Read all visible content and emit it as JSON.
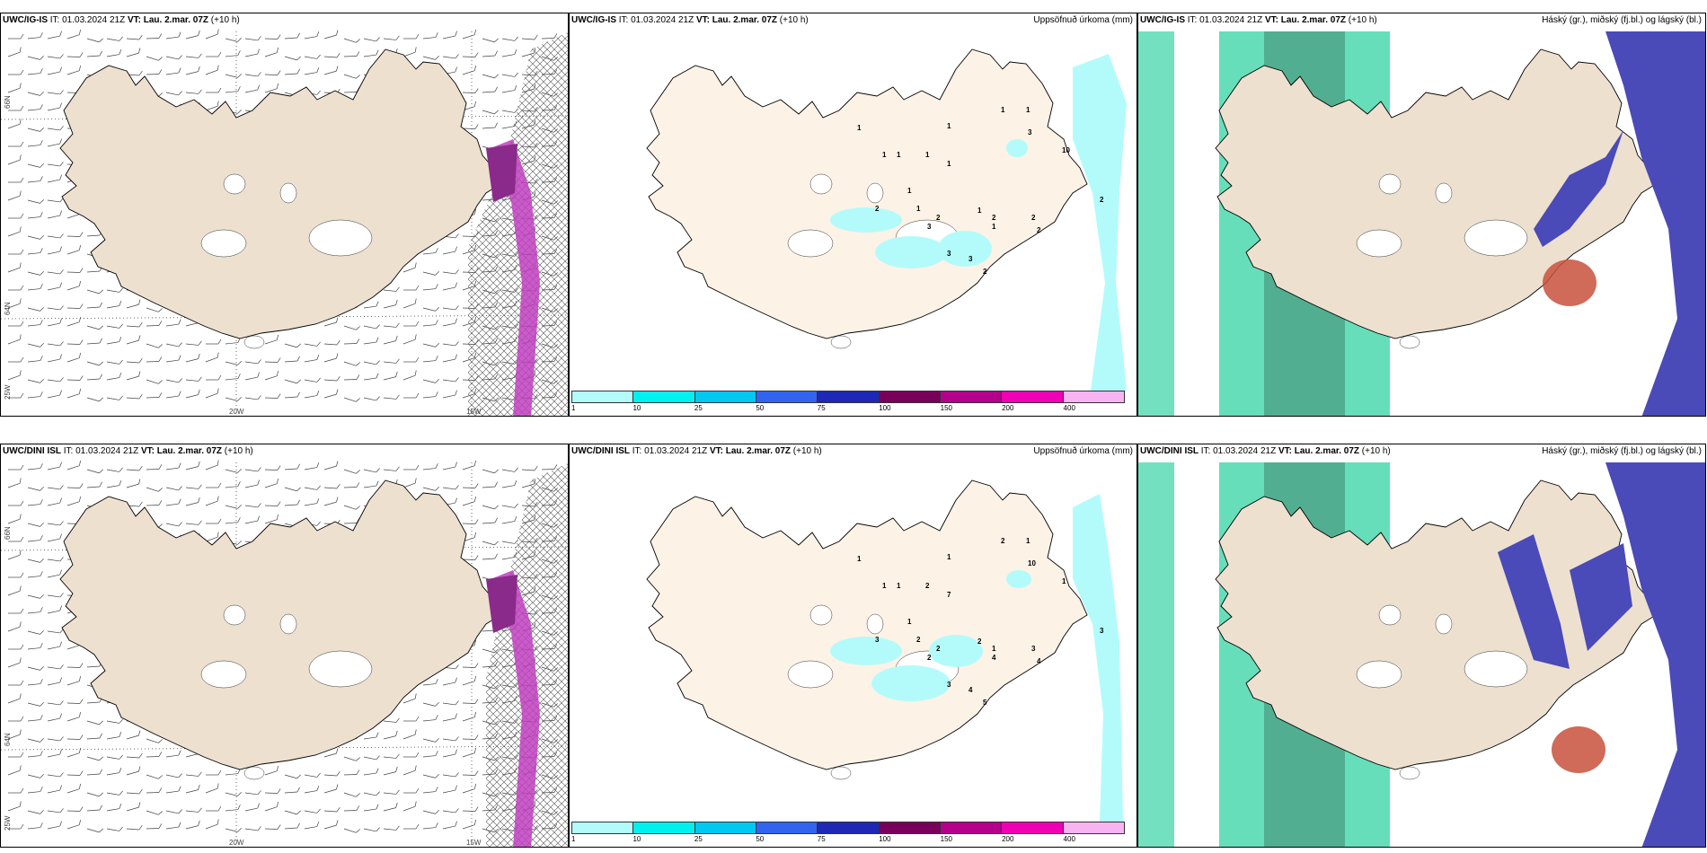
{
  "panels": [
    {
      "model": "UWC/IG-IS",
      "it": "IT: 01.03.2024 21Z",
      "vt_label": "VT:",
      "vt": "Lau. 2.mar. 07Z",
      "lead": "(+10 h)",
      "right": ""
    },
    {
      "model": "UWC/IG-IS",
      "it": "IT: 01.03.2024 21Z",
      "vt_label": "VT:",
      "vt": "Lau. 2.mar. 07Z",
      "lead": "(+10 h)",
      "right": "Uppsöfnuð úrkoma (mm)"
    },
    {
      "model": "UWC/IG-IS",
      "it": "IT: 01.03.2024 21Z",
      "vt_label": "VT:",
      "vt": "Lau. 2.mar. 07Z",
      "lead": "(+10 h)",
      "right": "Háský (gr.), miðský (fj.bl.) og lágský (bl.)"
    },
    {
      "model": "UWC/DINI ISL",
      "it": "IT: 01.03.2024 21Z",
      "vt_label": "VT:",
      "vt": "Lau. 2.mar. 07Z",
      "lead": "(+10 h)",
      "right": ""
    },
    {
      "model": "UWC/DINI ISL",
      "it": "IT: 01.03.2024 21Z",
      "vt_label": "VT:",
      "vt": "Lau. 2.mar. 07Z",
      "lead": "(+10 h)",
      "right": "Uppsöfnuð úrkoma (mm)"
    },
    {
      "model": "UWC/DINI ISL",
      "it": "IT: 01.03.2024 21Z",
      "vt_label": "VT:",
      "vt": "Lau. 2.mar. 07Z",
      "lead": "(+10 h)",
      "right": "Háský (gr.), miðský (fj.bl.) og lágský (bl.)"
    }
  ],
  "grid_labels": {
    "lat": [
      "66N",
      "64N"
    ],
    "lon": [
      "25W",
      "20W",
      "15W"
    ]
  },
  "precip_legend": {
    "ticks": [
      "1",
      "10",
      "25",
      "50",
      "75",
      "100",
      "150",
      "200",
      "400"
    ],
    "colors": [
      "#b3fbfb",
      "#00f0f0",
      "#00c8f0",
      "#3264f0",
      "#1e28b4",
      "#78005a",
      "#b4008c",
      "#f000b4",
      "#f8b4f0"
    ]
  },
  "precip_values_top": [
    "1",
    "1",
    "1",
    "1",
    "1",
    "1",
    "1",
    "1",
    "3",
    "10",
    "2",
    "1",
    "1",
    "2",
    "3",
    "2",
    "1",
    "2",
    "2",
    "2",
    "1",
    "3",
    "3",
    "2"
  ],
  "precip_values_bottom": [
    "1",
    "1",
    "2",
    "1",
    "1",
    "1",
    "2",
    "7",
    "10",
    "1",
    "3",
    "1",
    "2",
    "3",
    "2",
    "2",
    "2",
    "1",
    "3",
    "4",
    "4",
    "3",
    "4",
    "5"
  ],
  "colors": {
    "land": "#ede0cf",
    "land_precip": "#fdf2e6",
    "precip_light": "#b3fbfb",
    "cloud_high": "#00c88c",
    "cloud_mid": "#4a4ab8",
    "cloud_low": "#c8503c"
  }
}
